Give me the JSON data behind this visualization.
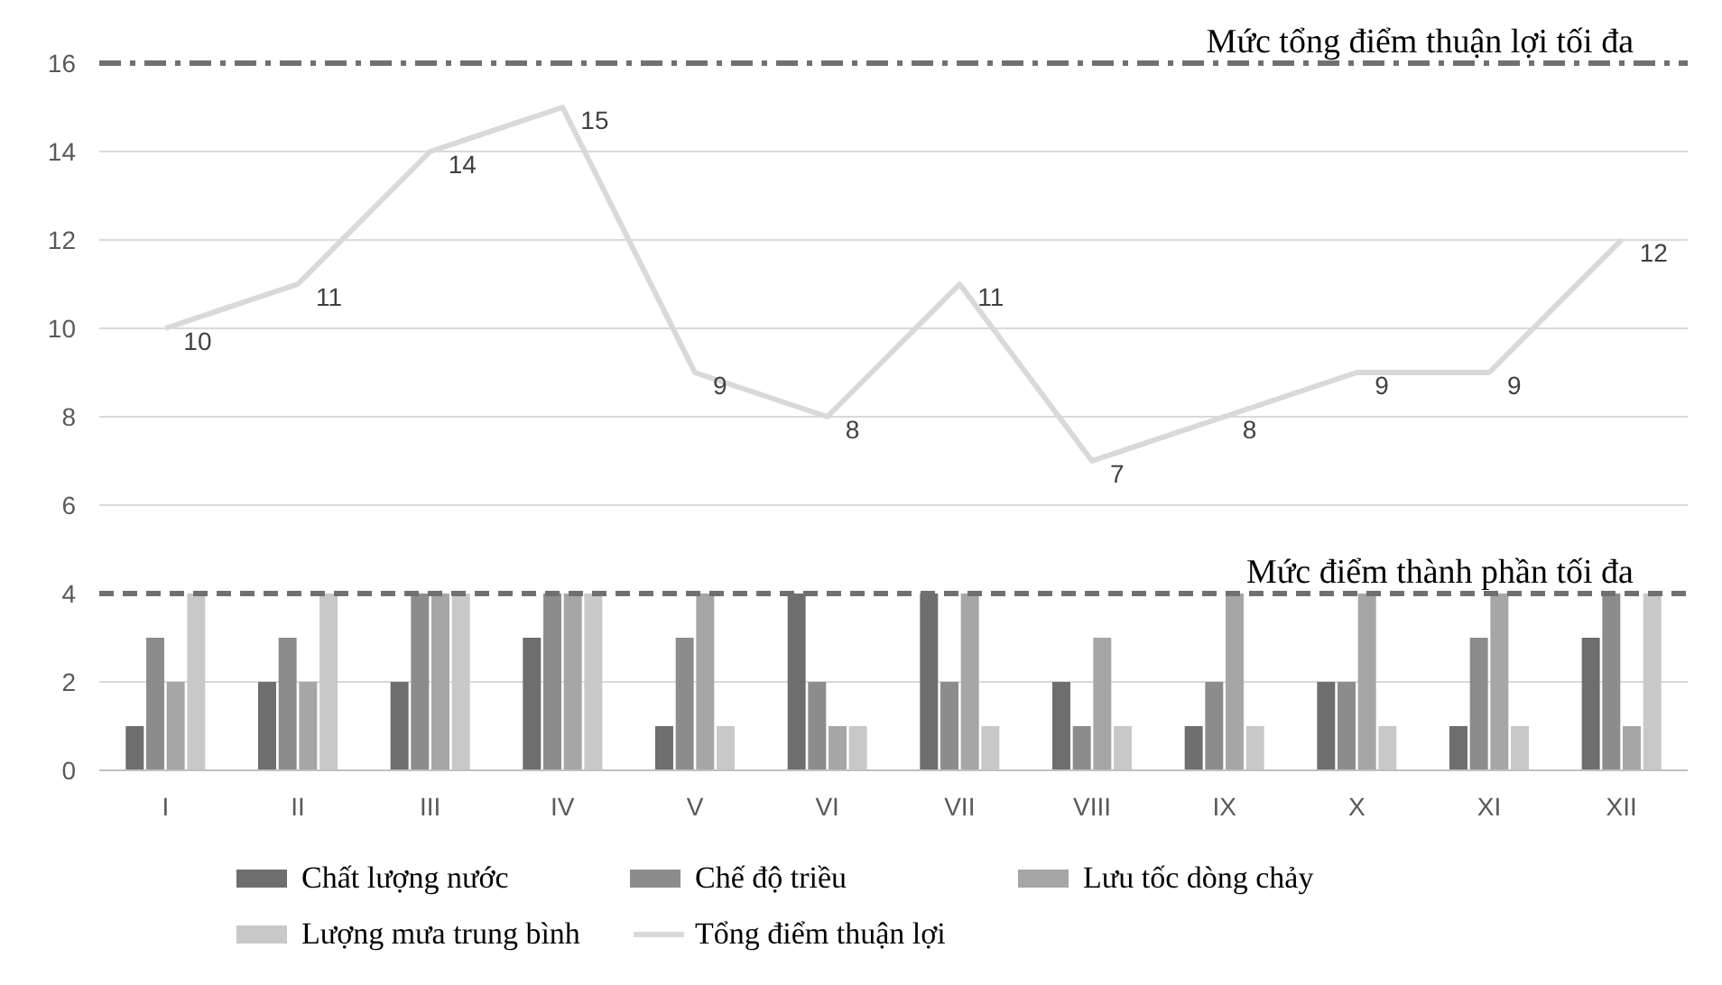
{
  "chart_data": {
    "type": "bar",
    "categories": [
      "I",
      "II",
      "III",
      "IV",
      "V",
      "VI",
      "VII",
      "VIII",
      "IX",
      "X",
      "XI",
      "XII"
    ],
    "series": [
      {
        "name": "Chất lượng nước",
        "color": "#6e6e6e",
        "values": [
          1,
          2,
          2,
          3,
          1,
          4,
          4,
          2,
          1,
          2,
          1,
          3
        ]
      },
      {
        "name": "Chế độ triều",
        "color": "#8c8c8c",
        "values": [
          3,
          3,
          4,
          4,
          3,
          2,
          2,
          1,
          2,
          2,
          3,
          4
        ]
      },
      {
        "name": "Lưu tốc dòng chảy",
        "color": "#a6a6a6",
        "values": [
          2,
          2,
          4,
          4,
          4,
          1,
          4,
          3,
          4,
          4,
          4,
          1
        ]
      },
      {
        "name": "Lượng mưa trung bình",
        "color": "#c8c8c8",
        "values": [
          4,
          4,
          4,
          4,
          1,
          1,
          1,
          1,
          1,
          1,
          1,
          4
        ]
      },
      {
        "name": "Tổng điểm thuận lợi",
        "type": "line",
        "color": "#d9d9d9",
        "data_labels": true,
        "values": [
          10,
          11,
          14,
          15,
          9,
          8,
          11,
          7,
          8,
          9,
          9,
          12
        ]
      }
    ],
    "ylim": [
      0,
      16
    ],
    "yticks": [
      0,
      2,
      4,
      6,
      8,
      10,
      12,
      14,
      16
    ],
    "grid": "y",
    "legend": "bottom",
    "ref_lines": [
      {
        "axis": "y",
        "value": 16,
        "label": "Mức tổng điểm thuận lợi tối đa",
        "color": "#707070",
        "line_style": "dashdot"
      },
      {
        "axis": "y",
        "value": 4,
        "label": "Mức điểm thành phần tối đa",
        "color": "#707070",
        "line_style": "dashed"
      }
    ]
  }
}
